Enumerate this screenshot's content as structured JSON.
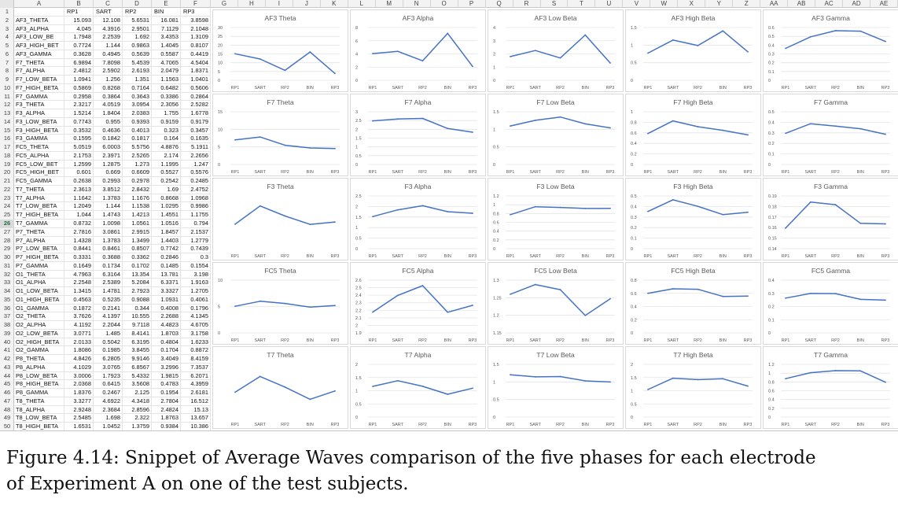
{
  "sheet": {
    "columns": [
      "A",
      "B",
      "C",
      "D",
      "E",
      "F",
      "G",
      "H",
      "I",
      "J",
      "K",
      "L",
      "M",
      "N",
      "O",
      "P",
      "Q",
      "R",
      "S",
      "T",
      "U",
      "V",
      "W",
      "X",
      "Y",
      "Z",
      "AA",
      "AB",
      "AC",
      "AD",
      "AE"
    ],
    "header": [
      "",
      "RP1",
      "SART",
      "RP2",
      "BIN",
      "RP3"
    ],
    "selected_row": 26,
    "rows": [
      [
        "AF3_THETA",
        "15.093",
        "12.108",
        "5.6531",
        "16.081",
        "3.8598"
      ],
      [
        "AF3_ALPHA",
        "4.045",
        "4.3916",
        "2.9501",
        "7.1129",
        "2.1048"
      ],
      [
        "AF3_LOW_BE",
        "1.7948",
        "2.2539",
        "1.692",
        "3.4353",
        "1.3109"
      ],
      [
        "AF3_HIGH_BET",
        "0.7724",
        "1.144",
        "0.9863",
        "1.4045",
        "0.8107"
      ],
      [
        "AF3_GAMMA",
        "0.3628",
        "0.4945",
        "0.5639",
        "0.5587",
        "0.4419"
      ],
      [
        "F7_THETA",
        "6.9894",
        "7.8098",
        "5.4539",
        "4.7065",
        "4.5404"
      ],
      [
        "F7_ALPHA",
        "2.4812",
        "2.5902",
        "2.6193",
        "2.0479",
        "1.8371"
      ],
      [
        "F7_LOW_BETA",
        "1.0941",
        "1.256",
        "1.351",
        "1.1563",
        "1.0401"
      ],
      [
        "F7_HIGH_BETA",
        "0.5869",
        "0.8268",
        "0.7164",
        "0.6482",
        "0.5606"
      ],
      [
        "F7_GAMMA",
        "0.2958",
        "0.3864",
        "0.3643",
        "0.3386",
        "0.2864"
      ],
      [
        "F3_THETA",
        "2.3217",
        "4.0519",
        "3.0954",
        "2.3056",
        "2.5282"
      ],
      [
        "F3_ALPHA",
        "1.5214",
        "1.8404",
        "2.0383",
        "1.755",
        "1.6778"
      ],
      [
        "F3_LOW_BETA",
        "0.7743",
        "0.955",
        "0.9393",
        "0.9159",
        "0.9179"
      ],
      [
        "F3_HIGH_BETA",
        "0.3532",
        "0.4636",
        "0.4013",
        "0.323",
        "0.3457"
      ],
      [
        "F3_GAMMA",
        "0.1595",
        "0.1842",
        "0.1817",
        "0.164",
        "0.1635"
      ],
      [
        "FC5_THETA",
        "5.0519",
        "6.0003",
        "5.5756",
        "4.8876",
        "5.1911"
      ],
      [
        "FC5_ALPHA",
        "2.1753",
        "2.3971",
        "2.5265",
        "2.174",
        "2.2656"
      ],
      [
        "FC5_LOW_BET",
        "1.2599",
        "1.2875",
        "1.273",
        "1.1995",
        "1.247"
      ],
      [
        "FC5_HIGH_BET",
        "0.601",
        "0.669",
        "0.6609",
        "0.5527",
        "0.5576"
      ],
      [
        "FC5_GAMMA",
        "0.2638",
        "0.2993",
        "0.2978",
        "0.2542",
        "0.2485"
      ],
      [
        "T7_THETA",
        "2.3613",
        "3.8512",
        "2.8432",
        "1.69",
        "2.4752"
      ],
      [
        "T7_ALPHA",
        "1.1642",
        "1.3783",
        "1.1676",
        "0.8668",
        "1.0968"
      ],
      [
        "T7_LOW_BETA",
        "1.2049",
        "1.144",
        "1.1538",
        "1.0295",
        "0.9986"
      ],
      [
        "T7_HIGH_BETA",
        "1.044",
        "1.4743",
        "1.4213",
        "1.4551",
        "1.1755"
      ],
      [
        "T7_GAMMA",
        "0.8732",
        "1.0098",
        "1.0561",
        "1.0516",
        "0.794"
      ],
      [
        "P7_THETA",
        "2.7816",
        "3.0861",
        "2.9915",
        "1.8457",
        "2.1537"
      ],
      [
        "P7_ALPHA",
        "1.4328",
        "1.3783",
        "1.3499",
        "1.4403",
        "1.2779"
      ],
      [
        "P7_LOW_BETA",
        "0.8441",
        "0.8461",
        "0.8507",
        "0.7742",
        "0.7439"
      ],
      [
        "P7_HIGH_BETA",
        "0.3331",
        "0.3688",
        "0.3362",
        "0.2846",
        "0.3"
      ],
      [
        "P7_GAMMA",
        "0.1649",
        "0.1734",
        "0.1702",
        "0.1485",
        "0.1554"
      ],
      [
        "O1_THETA",
        "4.7963",
        "6.3164",
        "13.354",
        "13.781",
        "3.198"
      ],
      [
        "O1_ALPHA",
        "2.2548",
        "2.5389",
        "5.2084",
        "6.3371",
        "1.9163"
      ],
      [
        "O1_LOW_BETA",
        "1.3415",
        "1.4781",
        "2.7923",
        "3.3327",
        "1.2705"
      ],
      [
        "O1_HIGH_BETA",
        "0.4563",
        "0.5235",
        "0.9088",
        "1.0931",
        "0.4061"
      ],
      [
        "O1_GAMMA",
        "0.1872",
        "0.2141",
        "0.344",
        "0.4008",
        "0.1796"
      ],
      [
        "O2_THETA",
        "3.7626",
        "4.1397",
        "10.555",
        "2.2688",
        "4.1345"
      ],
      [
        "O2_ALPHA",
        "4.1192",
        "2.2044",
        "9.7118",
        "4.4823",
        "4.6705"
      ],
      [
        "O2_LOW_BETA",
        "3.0771",
        "1.485",
        "8.4141",
        "1.8703",
        "3.1758"
      ],
      [
        "O2_HIGH_BETA",
        "2.0133",
        "0.5042",
        "6.3195",
        "0.4804",
        "1.6233"
      ],
      [
        "O2_GAMMA",
        "1.8086",
        "0.1985",
        "3.8455",
        "0.1704",
        "0.8872"
      ],
      [
        "P8_THETA",
        "4.8426",
        "6.2805",
        "9.9146",
        "3.4049",
        "8.4159"
      ],
      [
        "P8_ALPHA",
        "4.1029",
        "3.0765",
        "6.8567",
        "3.2996",
        "7.3537"
      ],
      [
        "P8_LOW_BETA",
        "3.0006",
        "1.7923",
        "5.4332",
        "1.9815",
        "6.2071"
      ],
      [
        "P8_HIGH_BETA",
        "2.0368",
        "0.6415",
        "3.5608",
        "0.4783",
        "4.3959"
      ],
      [
        "P8_GAMMA",
        "1.8376",
        "0.2467",
        "2.125",
        "0.1954",
        "2.6181"
      ],
      [
        "T8_THETA",
        "3.3277",
        "4.6922",
        "4.3418",
        "2.7804",
        "16.512"
      ],
      [
        "T8_ALPHA",
        "2.9248",
        "2.3684",
        "2.8596",
        "2.4824",
        "15.13"
      ],
      [
        "T8_LOW_BETA",
        "2.5485",
        "1.698",
        "2.322",
        "1.8763",
        "13.657"
      ],
      [
        "T8_HIGH_BETA",
        "1.6531",
        "1.0452",
        "1.3759",
        "0.9384",
        "10.386"
      ]
    ]
  },
  "chart_data": [
    {
      "type": "line",
      "title": "AF3 Theta",
      "categories": [
        "RP1",
        "SART",
        "RP2",
        "BIN",
        "RP3"
      ],
      "values": [
        15.093,
        12.108,
        5.6531,
        16.081,
        3.8598
      ],
      "yticks": [
        "30",
        "25",
        "20",
        "15",
        "10",
        "5",
        "0"
      ],
      "ylim": [
        0,
        30
      ]
    },
    {
      "type": "line",
      "title": "AF3 Alpha",
      "categories": [
        "RP1",
        "SART",
        "RP2",
        "BIN",
        "RP3"
      ],
      "values": [
        4.045,
        4.3916,
        2.9501,
        7.1129,
        2.1048
      ],
      "yticks": [
        "8",
        "6",
        "4",
        "2",
        "0"
      ],
      "ylim": [
        0,
        8
      ]
    },
    {
      "type": "line",
      "title": "AF3 Low Beta",
      "categories": [
        "RP1",
        "SART",
        "RP2",
        "BIN",
        "RP3"
      ],
      "values": [
        1.7948,
        2.2539,
        1.692,
        3.4353,
        1.3109
      ],
      "yticks": [
        "4",
        "3",
        "2",
        "1",
        "0"
      ],
      "ylim": [
        0,
        4
      ]
    },
    {
      "type": "line",
      "title": "AF3 High Beta",
      "categories": [
        "RP1",
        "SART",
        "RP2",
        "BIN",
        "RP3"
      ],
      "values": [
        0.7724,
        1.144,
        0.9863,
        1.4045,
        0.8107
      ],
      "yticks": [
        "1.5",
        "1",
        "0.5",
        "0"
      ],
      "ylim": [
        0,
        1.5
      ]
    },
    {
      "type": "line",
      "title": "AF3 Gamma",
      "categories": [
        "RP1",
        "SART",
        "RP2",
        "BIN",
        "RP3"
      ],
      "values": [
        0.3628,
        0.4945,
        0.5639,
        0.5587,
        0.4419
      ],
      "yticks": [
        "0.6",
        "0.5",
        "0.4",
        "0.3",
        "0.2",
        "0.1",
        "0"
      ],
      "ylim": [
        0,
        0.6
      ]
    },
    {
      "type": "line",
      "title": "F7 Theta",
      "categories": [
        "RP1",
        "SART",
        "RP2",
        "BIN",
        "RP3"
      ],
      "values": [
        6.9894,
        7.8098,
        5.4539,
        4.7065,
        4.5404
      ],
      "yticks": [
        "15",
        "10",
        "5",
        "0"
      ],
      "ylim": [
        0,
        15
      ]
    },
    {
      "type": "line",
      "title": "F7 Alpha",
      "categories": [
        "RP1",
        "SART",
        "RP2",
        "BIN",
        "RP3"
      ],
      "values": [
        2.4812,
        2.5902,
        2.6193,
        2.0479,
        1.8371
      ],
      "yticks": [
        "3",
        "2.5",
        "2",
        "1.5",
        "1",
        "0.5",
        "0"
      ],
      "ylim": [
        0,
        3
      ]
    },
    {
      "type": "line",
      "title": "F7 Low Beta",
      "categories": [
        "RP1",
        "SART",
        "RP2",
        "BIN",
        "RP3"
      ],
      "values": [
        1.0941,
        1.256,
        1.351,
        1.1563,
        1.0401
      ],
      "yticks": [
        "1.5",
        "1",
        "0.5",
        "0"
      ],
      "ylim": [
        0,
        1.5
      ]
    },
    {
      "type": "line",
      "title": "F7 High Beta",
      "categories": [
        "RP1",
        "SART",
        "RP2",
        "BIN",
        "RP3"
      ],
      "values": [
        0.5869,
        0.8268,
        0.7164,
        0.6482,
        0.5606
      ],
      "yticks": [
        "1",
        "0.8",
        "0.6",
        "0.4",
        "0.2",
        "0"
      ],
      "ylim": [
        0,
        1
      ]
    },
    {
      "type": "line",
      "title": "F7 Gamma",
      "categories": [
        "RP1",
        "SART",
        "RP2",
        "BIN",
        "RP3"
      ],
      "values": [
        0.2958,
        0.3864,
        0.3643,
        0.3386,
        0.2864
      ],
      "yticks": [
        "0.5",
        "0.4",
        "0.3",
        "0.2",
        "0.1",
        "0"
      ],
      "ylim": [
        0,
        0.5
      ]
    },
    {
      "type": "line",
      "title": "F3 Theta",
      "categories": [
        "RP1",
        "SART",
        "RP2",
        "BIN",
        "RP3"
      ],
      "values": [
        2.3217,
        4.0519,
        3.0954,
        2.3056,
        2.5282
      ],
      "yticks": [],
      "ylim": [
        0,
        5
      ]
    },
    {
      "type": "line",
      "title": "F3 Alpha",
      "categories": [
        "RP1",
        "SART",
        "RP2",
        "BIN",
        "RP3"
      ],
      "values": [
        1.5214,
        1.8404,
        2.0383,
        1.755,
        1.6778
      ],
      "yticks": [
        "2.5",
        "2",
        "1.5",
        "1",
        "0.5",
        "0"
      ],
      "ylim": [
        0,
        2.5
      ]
    },
    {
      "type": "line",
      "title": "F3 Low Beta",
      "categories": [
        "RP1",
        "SART",
        "RP2",
        "BIN",
        "RP3"
      ],
      "values": [
        0.7743,
        0.955,
        0.9393,
        0.9159,
        0.9179
      ],
      "yticks": [
        "1.2",
        "1",
        "0.8",
        "0.6",
        "0.4",
        "0.2",
        "0"
      ],
      "ylim": [
        0,
        1.2
      ]
    },
    {
      "type": "line",
      "title": "F3 High Beta",
      "categories": [
        "RP1",
        "SART",
        "RP2",
        "BIN",
        "RP3"
      ],
      "values": [
        0.3532,
        0.4636,
        0.4013,
        0.323,
        0.3457
      ],
      "yticks": [
        "0.5",
        "0.4",
        "0.3",
        "0.2",
        "0.1",
        "0"
      ],
      "ylim": [
        0,
        0.5
      ]
    },
    {
      "type": "line",
      "title": "F3 Gamma",
      "categories": [
        "RP1",
        "SART",
        "RP2",
        "BIN",
        "RP3"
      ],
      "values": [
        0.1595,
        0.1842,
        0.1817,
        0.164,
        0.1635
      ],
      "yticks": [
        "0.19",
        "0.18",
        "0.17",
        "0.16",
        "0.15",
        "0.14"
      ],
      "ylim": [
        0.14,
        0.19
      ]
    },
    {
      "type": "line",
      "title": "FC5 Theta",
      "categories": [
        "RP1",
        "SART",
        "RP2",
        "BIN",
        "RP3"
      ],
      "values": [
        5.0519,
        6.0003,
        5.5756,
        4.8876,
        5.1911
      ],
      "yticks": [
        "10",
        "5",
        "0"
      ],
      "ylim": [
        0,
        10
      ]
    },
    {
      "type": "line",
      "title": "FC5 Alpha",
      "categories": [
        "RP1",
        "SART",
        "RP2",
        "BIN",
        "RP3"
      ],
      "values": [
        2.1753,
        2.3971,
        2.5265,
        2.174,
        2.2656
      ],
      "yticks": [
        "2.6",
        "2.5",
        "2.4",
        "2.3",
        "2.2",
        "2.1",
        "2",
        "1.9"
      ],
      "ylim": [
        1.9,
        2.6
      ]
    },
    {
      "type": "line",
      "title": "FC5 Low Beta",
      "categories": [
        "RP1",
        "SART",
        "RP2",
        "BIN",
        "RP3"
      ],
      "values": [
        1.2599,
        1.2875,
        1.273,
        1.1995,
        1.247
      ],
      "yticks": [
        "1.3",
        "1.25",
        "1.2",
        "1.15"
      ],
      "ylim": [
        1.15,
        1.3
      ]
    },
    {
      "type": "line",
      "title": "FC5 High Beta",
      "categories": [
        "RP1",
        "SART",
        "RP2",
        "BIN",
        "RP3"
      ],
      "values": [
        0.601,
        0.669,
        0.6609,
        0.5527,
        0.5576
      ],
      "yticks": [
        "0.8",
        "0.6",
        "0.4",
        "0.2",
        "0"
      ],
      "ylim": [
        0,
        0.8
      ]
    },
    {
      "type": "line",
      "title": "FC5 Gamma",
      "categories": [
        "RP1",
        "SART",
        "RP2",
        "BIN",
        "RP3"
      ],
      "values": [
        0.2638,
        0.2993,
        0.2978,
        0.2542,
        0.2485
      ],
      "yticks": [
        "0.4",
        "0.3",
        "0.2",
        "0.1",
        "0"
      ],
      "ylim": [
        0,
        0.4
      ]
    },
    {
      "type": "line",
      "title": "T7 Theta",
      "categories": [
        "RP1",
        "SART",
        "RP2",
        "BIN",
        "RP3"
      ],
      "values": [
        2.3613,
        3.8512,
        2.8432,
        1.69,
        2.4752
      ],
      "yticks": [],
      "ylim": [
        0,
        5
      ]
    },
    {
      "type": "line",
      "title": "T7 Alpha",
      "categories": [
        "RP1",
        "SART",
        "RP2",
        "BIN",
        "RP3"
      ],
      "values": [
        1.1642,
        1.3783,
        1.1676,
        0.8668,
        1.0968
      ],
      "yticks": [
        "2",
        "1.5",
        "1",
        "0.5",
        "0"
      ],
      "ylim": [
        0,
        2
      ]
    },
    {
      "type": "line",
      "title": "T7 Low Beta",
      "categories": [
        "RP1",
        "SART",
        "RP2",
        "BIN",
        "RP3"
      ],
      "values": [
        1.2049,
        1.144,
        1.1538,
        1.0295,
        0.9986
      ],
      "yticks": [
        "1.5",
        "1",
        "0.5",
        "0"
      ],
      "ylim": [
        0,
        1.5
      ]
    },
    {
      "type": "line",
      "title": "T7 High Beta",
      "categories": [
        "RP1",
        "SART",
        "RP2",
        "BIN",
        "RP3"
      ],
      "values": [
        1.044,
        1.4743,
        1.4213,
        1.4551,
        1.1755
      ],
      "yticks": [
        "2",
        "1.5",
        "1",
        "0.5",
        "0"
      ],
      "ylim": [
        0,
        2
      ]
    },
    {
      "type": "line",
      "title": "T7 Gamma",
      "categories": [
        "RP1",
        "SART",
        "RP2",
        "BIN",
        "RP3"
      ],
      "values": [
        0.8732,
        1.0098,
        1.0561,
        1.0516,
        0.794
      ],
      "yticks": [
        "1.2",
        "1",
        "0.8",
        "0.6",
        "0.4",
        "0.2",
        "0"
      ],
      "ylim": [
        0,
        1.2
      ]
    }
  ],
  "caption": {
    "line1": "Figure 4.14: Snippet of Average Waves comparison of the five phases for each electrode",
    "line2": "of Experiment A on one of the test subjects."
  },
  "colors": {
    "line": "#4472c4",
    "grid": "#e4e4e4",
    "tick": "#595959"
  }
}
